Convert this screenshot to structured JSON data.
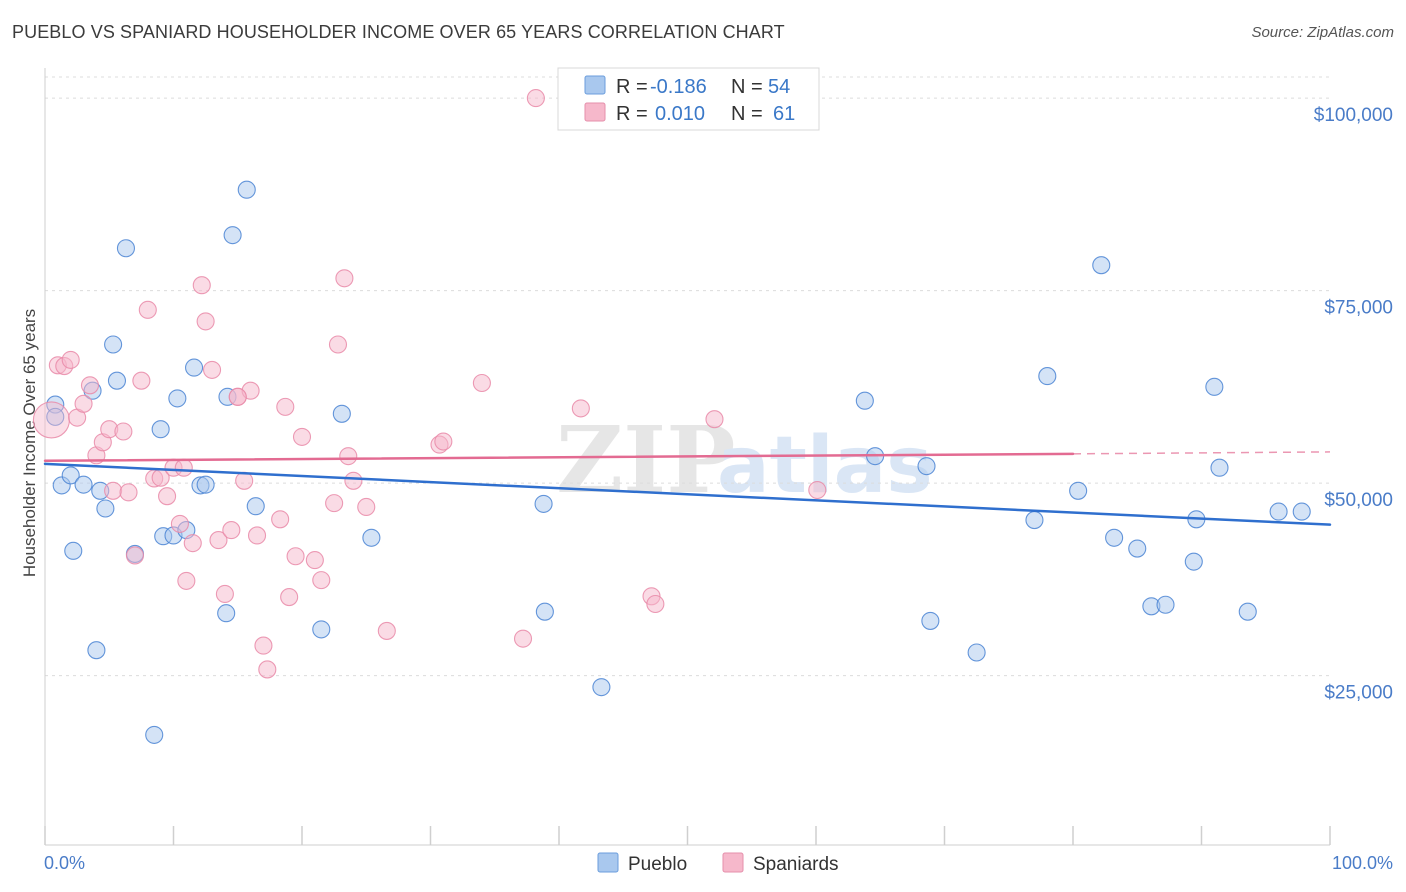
{
  "header": {
    "title": "PUEBLO VS SPANIARD HOUSEHOLDER INCOME OVER 65 YEARS CORRELATION CHART",
    "source": "Source: ZipAtlas.com"
  },
  "watermark": {
    "zip": "ZIP",
    "atlas": "atlas"
  },
  "stats_legend": {
    "r_label": "R =",
    "n_label": "N =",
    "rows": [
      {
        "series": "Pueblo",
        "r": "-0.186",
        "n": "54",
        "color": "#a9c8ee"
      },
      {
        "series": "Spaniards",
        "r": "0.010",
        "n": "61",
        "color": "#f6b8cb"
      }
    ]
  },
  "chart_data": {
    "type": "scatter",
    "title": "PUEBLO VS SPANIARD HOUSEHOLDER INCOME OVER 65 YEARS CORRELATION CHART",
    "xlabel": "",
    "ylabel": "Householder Income Over 65 years",
    "x_tick_labels": [
      "0.0%",
      "100.0%"
    ],
    "y_tick_labels": [
      "$25,000",
      "$50,000",
      "$75,000",
      "$100,000"
    ],
    "y_ticks": [
      25000,
      50000,
      75000,
      100000
    ],
    "xlim": [
      0,
      100
    ],
    "ylim": [
      3000,
      103000
    ],
    "grid": "horizontal dashed",
    "legend_position": "bottom-center",
    "series": [
      {
        "name": "Pueblo",
        "color": "#4a84d4",
        "fill": "#a9c8ee",
        "trend": {
          "x": [
            0,
            100
          ],
          "y": [
            52500,
            44600
          ],
          "color": "#2f6fce"
        },
        "points": [
          {
            "x": 0.8,
            "y": 60200
          },
          {
            "x": 0.8,
            "y": 58600
          },
          {
            "x": 1.3,
            "y": 49700
          },
          {
            "x": 2.0,
            "y": 51000
          },
          {
            "x": 2.2,
            "y": 41200
          },
          {
            "x": 3.0,
            "y": 49800
          },
          {
            "x": 3.7,
            "y": 62000
          },
          {
            "x": 4.0,
            "y": 28300
          },
          {
            "x": 4.3,
            "y": 49000
          },
          {
            "x": 4.7,
            "y": 46700
          },
          {
            "x": 5.3,
            "y": 68000
          },
          {
            "x": 5.6,
            "y": 63300
          },
          {
            "x": 6.3,
            "y": 80500
          },
          {
            "x": 7.0,
            "y": 40800
          },
          {
            "x": 8.5,
            "y": 17300
          },
          {
            "x": 9.0,
            "y": 57000
          },
          {
            "x": 9.2,
            "y": 43100
          },
          {
            "x": 10.0,
            "y": 43200
          },
          {
            "x": 10.3,
            "y": 61000
          },
          {
            "x": 11.0,
            "y": 43900
          },
          {
            "x": 11.6,
            "y": 65000
          },
          {
            "x": 12.1,
            "y": 49700
          },
          {
            "x": 12.5,
            "y": 49800
          },
          {
            "x": 14.1,
            "y": 33100
          },
          {
            "x": 14.2,
            "y": 61200
          },
          {
            "x": 14.6,
            "y": 82200
          },
          {
            "x": 15.7,
            "y": 88100
          },
          {
            "x": 16.4,
            "y": 47000
          },
          {
            "x": 21.5,
            "y": 31000
          },
          {
            "x": 23.1,
            "y": 59000
          },
          {
            "x": 25.4,
            "y": 42900
          },
          {
            "x": 38.8,
            "y": 47300
          },
          {
            "x": 38.9,
            "y": 33300
          },
          {
            "x": 43.3,
            "y": 23500
          },
          {
            "x": 63.8,
            "y": 60700
          },
          {
            "x": 64.6,
            "y": 53500
          },
          {
            "x": 68.6,
            "y": 52200
          },
          {
            "x": 68.9,
            "y": 32100
          },
          {
            "x": 72.5,
            "y": 28000
          },
          {
            "x": 77.0,
            "y": 45200
          },
          {
            "x": 78.0,
            "y": 63900
          },
          {
            "x": 80.4,
            "y": 49000
          },
          {
            "x": 82.2,
            "y": 78300
          },
          {
            "x": 83.2,
            "y": 42900
          },
          {
            "x": 85.0,
            "y": 41500
          },
          {
            "x": 86.1,
            "y": 34000
          },
          {
            "x": 87.2,
            "y": 34200
          },
          {
            "x": 89.4,
            "y": 39800
          },
          {
            "x": 89.6,
            "y": 45300
          },
          {
            "x": 91.0,
            "y": 62500
          },
          {
            "x": 91.4,
            "y": 52000
          },
          {
            "x": 93.6,
            "y": 33300
          },
          {
            "x": 96.0,
            "y": 46300
          },
          {
            "x": 97.8,
            "y": 46300
          }
        ]
      },
      {
        "name": "Spaniards",
        "color": "#e98aa8",
        "fill": "#f6b8cb",
        "trend": {
          "x": [
            0,
            80
          ],
          "y": [
            52900,
            53800
          ],
          "color": "#e36b92",
          "dashed_extension_to": [
            80,
            100
          ],
          "dashed_y_end": 54050
        },
        "points": [
          {
            "x": 0.5,
            "y": 58200
          },
          {
            "x": 1.0,
            "y": 65300
          },
          {
            "x": 1.5,
            "y": 65200
          },
          {
            "x": 2.0,
            "y": 66000
          },
          {
            "x": 2.5,
            "y": 58500
          },
          {
            "x": 3.0,
            "y": 60300
          },
          {
            "x": 3.5,
            "y": 62700
          },
          {
            "x": 4.0,
            "y": 53600
          },
          {
            "x": 4.5,
            "y": 55300
          },
          {
            "x": 5.0,
            "y": 57000
          },
          {
            "x": 5.3,
            "y": 49000
          },
          {
            "x": 6.1,
            "y": 56700
          },
          {
            "x": 6.5,
            "y": 48800
          },
          {
            "x": 7.0,
            "y": 40600
          },
          {
            "x": 7.5,
            "y": 63300
          },
          {
            "x": 8.0,
            "y": 72500
          },
          {
            "x": 8.5,
            "y": 50600
          },
          {
            "x": 9.0,
            "y": 50700
          },
          {
            "x": 9.5,
            "y": 48300
          },
          {
            "x": 10.0,
            "y": 52000
          },
          {
            "x": 10.5,
            "y": 44700
          },
          {
            "x": 11.0,
            "y": 37300
          },
          {
            "x": 11.5,
            "y": 42200
          },
          {
            "x": 12.2,
            "y": 75700
          },
          {
            "x": 12.5,
            "y": 71000
          },
          {
            "x": 13.0,
            "y": 64700
          },
          {
            "x": 13.5,
            "y": 42600
          },
          {
            "x": 14.0,
            "y": 35600
          },
          {
            "x": 14.5,
            "y": 43900
          },
          {
            "x": 15.0,
            "y": 61200
          },
          {
            "x": 15.5,
            "y": 50300
          },
          {
            "x": 16.0,
            "y": 62000
          },
          {
            "x": 16.5,
            "y": 43200
          },
          {
            "x": 17.0,
            "y": 28900
          },
          {
            "x": 17.3,
            "y": 25800
          },
          {
            "x": 18.3,
            "y": 45300
          },
          {
            "x": 18.7,
            "y": 59900
          },
          {
            "x": 19.0,
            "y": 35200
          },
          {
            "x": 19.5,
            "y": 40500
          },
          {
            "x": 20.0,
            "y": 56000
          },
          {
            "x": 21.0,
            "y": 40000
          },
          {
            "x": 21.5,
            "y": 37400
          },
          {
            "x": 22.5,
            "y": 47400
          },
          {
            "x": 22.8,
            "y": 68000
          },
          {
            "x": 23.3,
            "y": 76600
          },
          {
            "x": 23.6,
            "y": 53500
          },
          {
            "x": 24.0,
            "y": 50300
          },
          {
            "x": 25.0,
            "y": 46900
          },
          {
            "x": 26.6,
            "y": 30800
          },
          {
            "x": 30.7,
            "y": 55000
          },
          {
            "x": 31.0,
            "y": 55400
          },
          {
            "x": 34.0,
            "y": 63000
          },
          {
            "x": 37.2,
            "y": 29800
          },
          {
            "x": 38.2,
            "y": 100000
          },
          {
            "x": 41.7,
            "y": 59700
          },
          {
            "x": 47.2,
            "y": 35300
          },
          {
            "x": 47.5,
            "y": 34300
          },
          {
            "x": 52.1,
            "y": 58300
          },
          {
            "x": 60.1,
            "y": 49100
          },
          {
            "x": 10.8,
            "y": 52000
          },
          {
            "x": 15.0,
            "y": 61200
          }
        ]
      }
    ]
  }
}
